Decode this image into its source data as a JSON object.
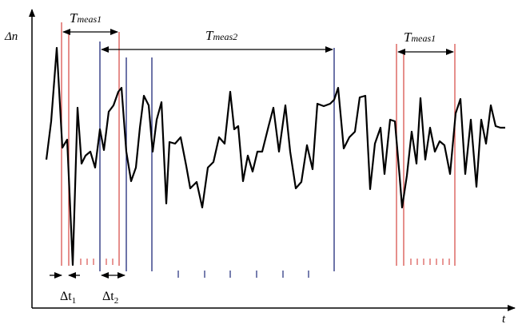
{
  "diagram": {
    "y_axis_label": "Δn",
    "x_axis_label": "t",
    "labels": {
      "tmeas1_main": "T",
      "tmeas1_main_sub": "meas1",
      "tmeas2": "T",
      "tmeas2_sub": "meas2",
      "tmeas1_right": "T",
      "tmeas1_right_sub": "meas1",
      "dt1": "Δt",
      "dt1_sub": "1",
      "dt2": "Δt",
      "dt2_sub": "2"
    },
    "colors": {
      "signal": "#000000",
      "window_red": "#d9534f",
      "window_blue": "#1f2a7a",
      "axis": "#000000"
    }
  }
}
